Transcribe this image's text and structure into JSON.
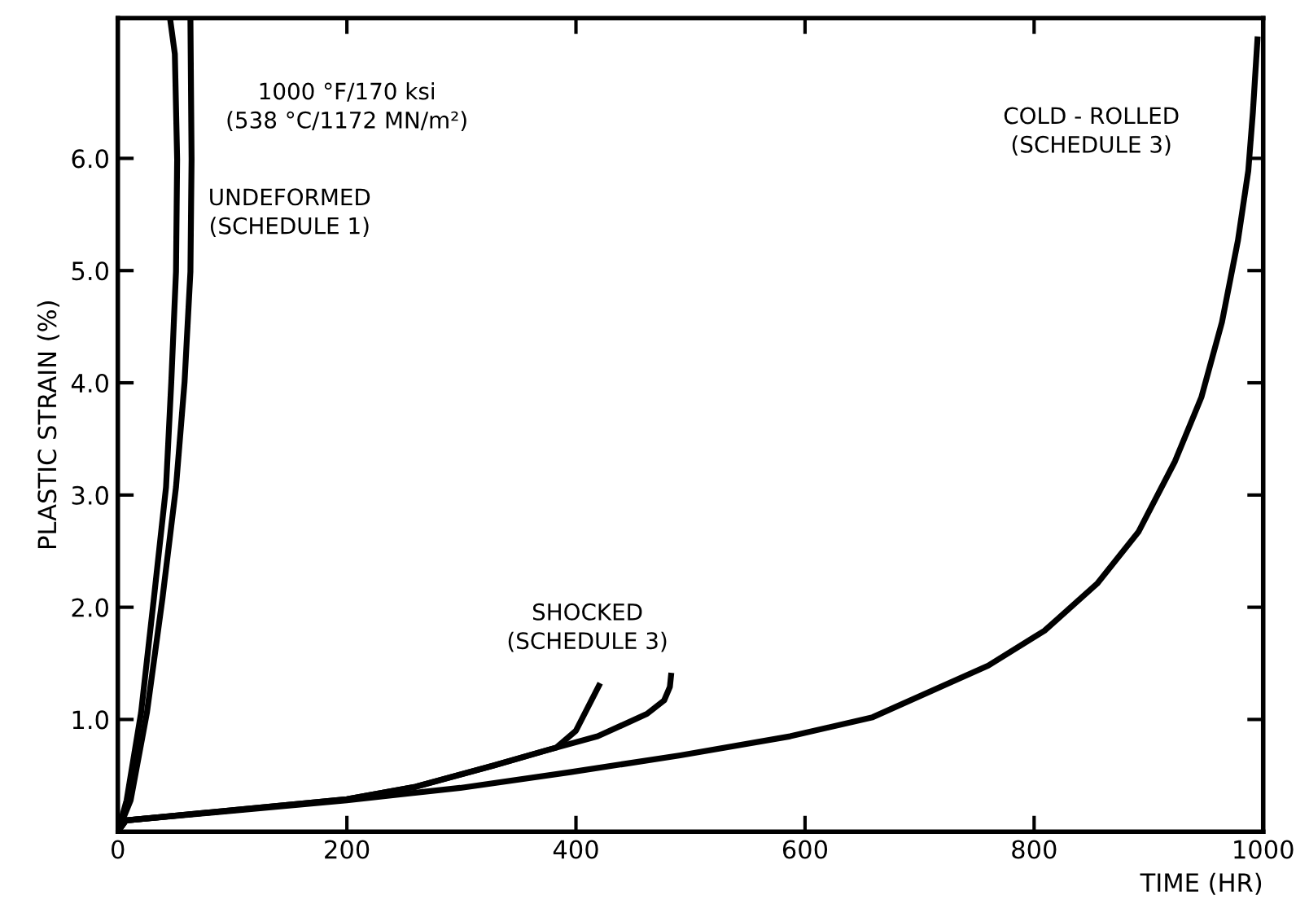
{
  "chart_data": {
    "type": "line",
    "xlabel": "TIME (HR)",
    "ylabel": "PLASTIC STRAIN (%)",
    "xlim": [
      0,
      1000
    ],
    "xticks": [
      0,
      200,
      400,
      600,
      800,
      1000
    ],
    "ylim": [
      0,
      7.25
    ],
    "yticks": [
      {
        "value": 1,
        "label": "1.0"
      },
      {
        "value": 2,
        "label": "2.0"
      },
      {
        "value": 3,
        "label": "3.0"
      },
      {
        "value": 4,
        "label": "4.0"
      },
      {
        "value": 5,
        "label": "5.0"
      },
      {
        "value": 6,
        "label": "6.0"
      }
    ],
    "grid": false,
    "legend": false,
    "marker": "none",
    "line_style": "solid",
    "series": [
      {
        "color": "#000000",
        "x": [
          0,
          7.7,
          20.3,
          31.5,
          42.1,
          46.7,
          50.8,
          51.8,
          49.8,
          45.7
        ],
        "values": [
          0,
          0.28,
          1.06,
          2.08,
          3.07,
          4.01,
          4.99,
          5.99,
          6.93,
          7.24
        ]
      },
      {
        "color": "#000000",
        "x": [
          0,
          11.2,
          25.4,
          39,
          50.8,
          58.3,
          63.4,
          64.4,
          63.4
        ],
        "values": [
          0,
          0.28,
          1.06,
          2.08,
          3.07,
          4.01,
          4.99,
          5.99,
          7.24
        ]
      },
      {
        "color": "#000000",
        "x": [
          0,
          7,
          200,
          260,
          328,
          376,
          383,
          400,
          412,
          420
        ],
        "values": [
          0,
          0.1,
          0.29,
          0.4,
          0.59,
          0.73,
          0.75,
          0.9,
          1.14,
          1.3
        ]
      },
      {
        "color": "#000000",
        "x": [
          0,
          7,
          200,
          260,
          328,
          376,
          419,
          462,
          477,
          482,
          483
        ],
        "values": [
          0,
          0.1,
          0.29,
          0.4,
          0.59,
          0.73,
          0.85,
          1.05,
          1.17,
          1.29,
          1.39
        ]
      },
      {
        "color": "#000000",
        "x": [
          0,
          7,
          200,
          299,
          395,
          491,
          587,
          659,
          760,
          809,
          855,
          891,
          923,
          946,
          964,
          978,
          987,
          991,
          995
        ],
        "values": [
          0,
          0.1,
          0.28,
          0.39,
          0.53,
          0.68,
          0.85,
          1.02,
          1.48,
          1.79,
          2.21,
          2.67,
          3.3,
          3.87,
          4.54,
          5.27,
          5.89,
          6.41,
          7.06
        ]
      }
    ],
    "annotations": [
      "1000 °F/170 ksi\n(538 °C/1172 MN/m²)",
      "UNDEFORMED\n(SCHEDULE 1)",
      "SHOCKED\n(SCHEDULE 3)",
      "COLD - ROLLED\n(SCHEDULE 3)"
    ]
  }
}
